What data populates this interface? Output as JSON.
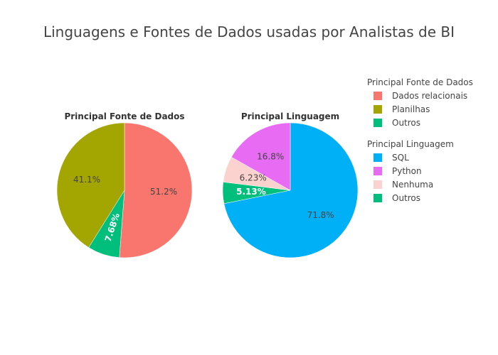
{
  "title": "Linguagens e Fontes de Dados usadas por Analistas de BI",
  "chart_data": [
    {
      "type": "pie",
      "title": "Principal Fonte de Dados",
      "direction": "clockwise",
      "start_angle_deg": 0,
      "slices": [
        {
          "label": "Dados relacionais",
          "value": 51.2,
          "text": "51.2%",
          "color": "#F8766D",
          "text_color": "#444444",
          "text_rotated": false
        },
        {
          "label": "Outros",
          "value": 7.68,
          "text": "7.68%",
          "color": "#00BF7D",
          "text_color": "#ffffff",
          "text_rotated": true
        },
        {
          "label": "Planilhas",
          "value": 41.1,
          "text": "41.1%",
          "color": "#A3A500",
          "text_color": "#444444",
          "text_rotated": false
        }
      ],
      "legend": {
        "title": "Principal Fonte de Dados",
        "entries": [
          {
            "label": "Dados relacionais",
            "color": "#F8766D"
          },
          {
            "label": "Planilhas",
            "color": "#A3A500"
          },
          {
            "label": "Outros",
            "color": "#00BF7D"
          }
        ]
      }
    },
    {
      "type": "pie",
      "title": "Principal Linguagem",
      "direction": "clockwise",
      "start_angle_deg": 0,
      "slices": [
        {
          "label": "SQL",
          "value": 71.8,
          "text": "71.8%",
          "color": "#00B0F6",
          "text_color": "#444444",
          "text_rotated": false
        },
        {
          "label": "Outros",
          "value": 5.13,
          "text": "5.13%",
          "color": "#00BF7D",
          "text_color": "#ffffff",
          "text_rotated": false
        },
        {
          "label": "Nenhuma",
          "value": 6.23,
          "text": "6.23%",
          "color": "#FCD2CE",
          "text_color": "#444444",
          "text_rotated": false
        },
        {
          "label": "Python",
          "value": 16.8,
          "text": "16.8%",
          "color": "#E76BF3",
          "text_color": "#444444",
          "text_rotated": false
        }
      ],
      "legend": {
        "title": "Principal Linguagem",
        "entries": [
          {
            "label": "SQL",
            "color": "#00B0F6"
          },
          {
            "label": "Python",
            "color": "#E76BF3"
          },
          {
            "label": "Nenhuma",
            "color": "#FCD2CE"
          },
          {
            "label": "Outros",
            "color": "#00BF7D"
          }
        ]
      }
    }
  ]
}
